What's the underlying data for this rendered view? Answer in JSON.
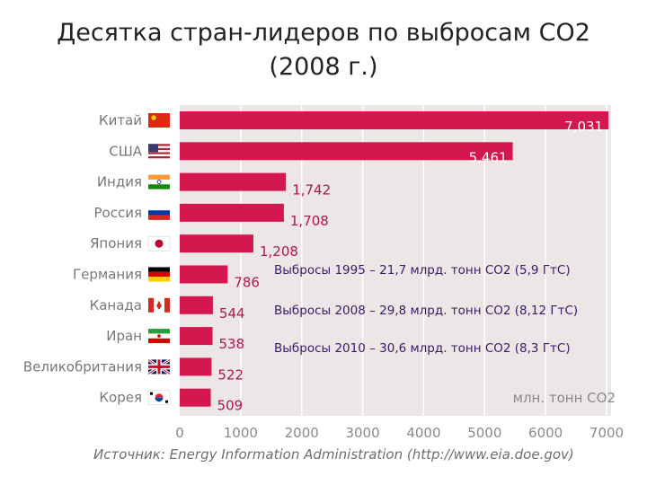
{
  "title_line1": "Десятка стран-лидеров по выбросам СО2",
  "title_line2": "(2008 г.)",
  "chart_data": {
    "type": "bar",
    "orientation": "horizontal",
    "categories": [
      "Китай",
      "США",
      "Индия",
      "Россия",
      "Япония",
      "Германия",
      "Канада",
      "Иран",
      "Великобритания",
      "Корея"
    ],
    "values": [
      7031,
      5461,
      1742,
      1708,
      1208,
      786,
      544,
      538,
      522,
      509
    ],
    "value_labels": [
      "7,031",
      "5,461",
      "1,742",
      "1,708",
      "1,208",
      "786",
      "544",
      "538",
      "522",
      "509"
    ],
    "flags": [
      "china-flag-icon",
      "usa-flag-icon",
      "india-flag-icon",
      "russia-flag-icon",
      "japan-flag-icon",
      "germany-flag-icon",
      "canada-flag-icon",
      "iran-flag-icon",
      "uk-flag-icon",
      "korea-flag-icon"
    ],
    "x_ticks": [
      "0",
      "1000",
      "2000",
      "3000",
      "4000",
      "5000",
      "6000",
      "7000"
    ],
    "xlim": [
      0,
      7000
    ],
    "unit_label": "млн. тонн СО2",
    "grid": true,
    "bar_color": "#d5174f",
    "inside_label_color": "#ffffff",
    "outside_label_color": "#b01848",
    "panel_color": "#ede6e6"
  },
  "notes": [
    "Выбросы 1995 – 21,7 млрд. тонн СО2 (5,9 ГтС)",
    "Выбросы 2008 – 29,8 млрд. тонн СО2 (8,12 ГтС)",
    "Выбросы 2010 – 30,6 млрд. тонн СО2 (8,3 ГтС)"
  ],
  "source": "Источник: Energy Information Administration (http://www.eia.doe.gov)"
}
